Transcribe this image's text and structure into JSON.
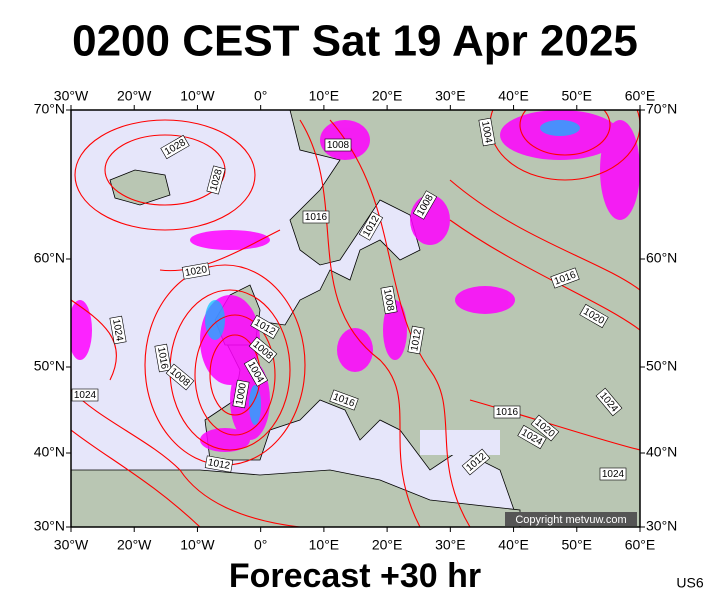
{
  "title": "0200 CEST Sat 19 Apr 2025",
  "forecast": "Forecast +30 hr",
  "code": "US6",
  "copyright": "Copyright metvuw.com",
  "longitude_labels": [
    "30°W",
    "20°W",
    "10°W",
    "0°",
    "10°E",
    "20°E",
    "30°E",
    "40°E",
    "50°E",
    "60°E"
  ],
  "latitude_labels": [
    "70°N",
    "60°N",
    "50°N",
    "40°N",
    "30°N"
  ],
  "isobar_labels": [
    "1028",
    "1028",
    "1008",
    "1004",
    "1016",
    "1012",
    "1008",
    "1020",
    "1024",
    "1016",
    "1008",
    "1012",
    "1008",
    "1004",
    "1000",
    "1008",
    "1012",
    "1016",
    "1020",
    "1016",
    "1024",
    "1012",
    "1016",
    "1024",
    "1024",
    "1020",
    "1012",
    "1024"
  ]
}
